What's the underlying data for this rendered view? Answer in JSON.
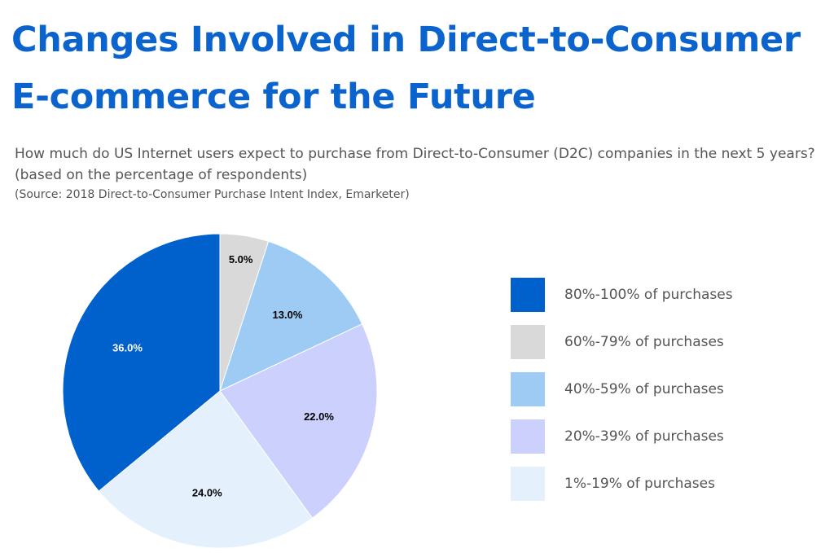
{
  "header": {
    "title_line1": "Changes Involved in Direct-to-Consumer",
    "title_line2": "E-commerce for the Future"
  },
  "chart_data": {
    "type": "pie",
    "title": "How much do US Internet users expect to purchase from Direct-to-Consumer (D2C) companies in the next 5 years?",
    "subtitle": "(based on the percentage of respondents)",
    "source": "(Source: 2018 Direct-to-Consumer Purchase Intent Index, Emarketer)",
    "legend_position": "right",
    "start": "top, clockwise",
    "slices": [
      {
        "label": "60%-79% of purchases",
        "value": 5.0,
        "display": "5.0%",
        "color": "#D9D9D9",
        "label_color": "#000000"
      },
      {
        "label": "40%-59% of purchases",
        "value": 13.0,
        "display": "13.0%",
        "color": "#9DCBF3",
        "label_color": "#000000"
      },
      {
        "label": "20%-39% of purchases",
        "value": 22.0,
        "display": "22.0%",
        "color": "#CCD0FD",
        "label_color": "#000000"
      },
      {
        "label": "1%-19% of purchases",
        "value": 24.0,
        "display": "24.0%",
        "color": "#E5F0FD",
        "label_color": "#000000"
      },
      {
        "label": "80%-100% of purchases",
        "value": 36.0,
        "display": "36.0%",
        "color": "#0060CC",
        "label_color": "#FFFFFF"
      }
    ],
    "legend": [
      {
        "label": "80%-100% of purchases",
        "color": "#0060CC"
      },
      {
        "label": "60%-79% of purchases",
        "color": "#D9D9D9"
      },
      {
        "label": "40%-59% of purchases",
        "color": "#9DCBF3"
      },
      {
        "label": "20%-39% of purchases",
        "color": "#CCD0FD"
      },
      {
        "label": "1%-19% of purchases",
        "color": "#E5F0FD"
      }
    ]
  }
}
